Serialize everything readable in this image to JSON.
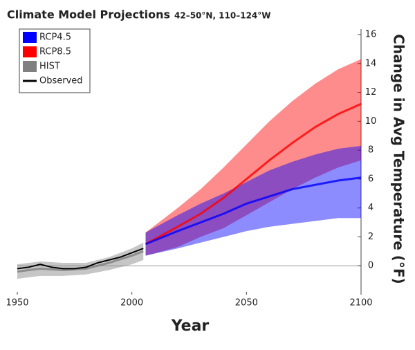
{
  "chart_data": {
    "type": "band",
    "title": "Climate Model Projections",
    "subtitle": "42–50°N, 110–124°W",
    "x_label": "Year",
    "y_label": "Change in Avg Temperature (°F)",
    "xlim": [
      1950,
      2100
    ],
    "xticks": [
      1950,
      2000,
      2050,
      2100
    ],
    "ylim": [
      -2,
      16
    ],
    "yticks": [
      0,
      2,
      4,
      6,
      8,
      10,
      12,
      14,
      16
    ],
    "legend": "top-left",
    "series": [
      {
        "name": "RCP4.5",
        "color": "#0000ff",
        "x": [
          2006,
          2020,
          2030,
          2040,
          2050,
          2060,
          2070,
          2080,
          2090,
          2100
        ],
        "low": [
          0.7,
          1.2,
          1.6,
          2.0,
          2.4,
          2.7,
          2.9,
          3.1,
          3.3,
          3.3
        ],
        "median": [
          1.5,
          2.4,
          3.0,
          3.6,
          4.3,
          4.8,
          5.3,
          5.6,
          5.9,
          6.1
        ],
        "high": [
          2.3,
          3.5,
          4.3,
          5.0,
          5.8,
          6.6,
          7.2,
          7.7,
          8.1,
          8.3
        ]
      },
      {
        "name": "RCP8.5",
        "color": "#ff0000",
        "x": [
          2006,
          2020,
          2030,
          2040,
          2050,
          2060,
          2070,
          2080,
          2090,
          2100
        ],
        "low": [
          0.7,
          1.3,
          2.0,
          2.6,
          3.5,
          4.4,
          5.3,
          6.1,
          6.8,
          7.3
        ],
        "median": [
          1.5,
          2.7,
          3.6,
          4.7,
          6.0,
          7.3,
          8.5,
          9.6,
          10.5,
          11.2
        ],
        "high": [
          2.3,
          4.0,
          5.3,
          6.8,
          8.4,
          10.0,
          11.4,
          12.6,
          13.6,
          14.3
        ]
      },
      {
        "name": "HIST",
        "color": "#808080",
        "x": [
          1950,
          1960,
          1970,
          1980,
          1990,
          2000,
          2005
        ],
        "low": [
          -0.9,
          -0.7,
          -0.7,
          -0.6,
          -0.3,
          0.1,
          0.4
        ],
        "median": [
          -0.4,
          -0.2,
          -0.3,
          -0.2,
          0.2,
          0.7,
          1.0
        ],
        "high": [
          0.1,
          0.3,
          0.2,
          0.2,
          0.6,
          1.2,
          1.6
        ]
      },
      {
        "name": "Observed",
        "color": "#000000",
        "x": [
          1950,
          1955,
          1960,
          1965,
          1970,
          1975,
          1980,
          1985,
          1990,
          1995,
          2000,
          2005
        ],
        "values": [
          -0.2,
          -0.1,
          0.1,
          -0.1,
          -0.2,
          -0.2,
          -0.1,
          0.2,
          0.4,
          0.6,
          0.9,
          1.2
        ]
      }
    ]
  }
}
